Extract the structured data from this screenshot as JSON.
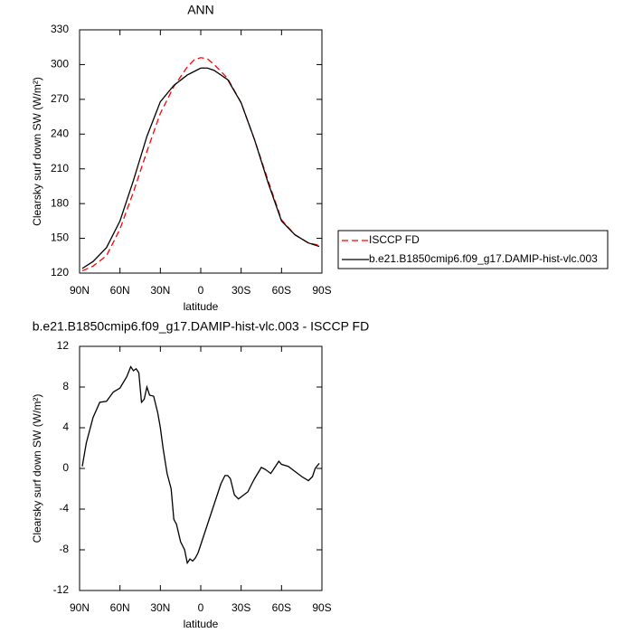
{
  "chart_data": [
    {
      "type": "line",
      "title": "ANN",
      "x_label": "latitude",
      "y_label": "Clearsky surf down SW (W/m²)",
      "x": [
        88,
        80,
        70,
        60,
        50,
        40,
        30,
        20,
        10,
        5,
        0,
        -5,
        -10,
        -20,
        -30,
        -40,
        -50,
        -60,
        -70,
        -80,
        -88
      ],
      "xlim": [
        90,
        -90
      ],
      "xticks": [
        {
          "value": 90,
          "label": "90N"
        },
        {
          "value": 60,
          "label": "60N"
        },
        {
          "value": 30,
          "label": "30N"
        },
        0,
        {
          "value": -30,
          "label": "30S"
        },
        {
          "value": -60,
          "label": "60S"
        },
        {
          "value": -90,
          "label": "90S"
        }
      ],
      "ylim": [
        120,
        330
      ],
      "yticks": [
        120,
        150,
        180,
        210,
        240,
        270,
        300,
        330
      ],
      "legend": "right",
      "series": [
        {
          "name": "ISCCP FD",
          "color": "#ff0000",
          "dashed": true,
          "values": [
            122,
            126,
            135,
            158,
            190,
            225,
            258,
            281,
            298,
            304,
            306,
            305,
            300,
            288,
            267,
            235,
            200,
            166,
            153,
            146,
            144
          ]
        },
        {
          "name": "b.e21.B1850cmip6.f09_g17.DAMIP-hist-vlc.003",
          "color": "#000000",
          "dashed": false,
          "values": [
            124,
            130,
            142,
            165,
            200,
            238,
            268,
            282,
            291,
            294,
            297,
            297,
            295,
            287,
            267,
            235,
            198,
            165,
            153,
            146,
            143
          ]
        }
      ]
    },
    {
      "type": "line",
      "title": "b.e21.B1850cmip6.f09_g17.DAMIP-hist-vlc.003 - ISCCP FD",
      "x_label": "latitude",
      "y_label": "Clearsky surf down SW (W/m²)",
      "x": [
        88,
        85,
        80,
        75,
        70,
        65,
        60,
        55,
        52,
        50,
        48,
        46,
        44,
        42,
        40,
        38,
        35,
        32,
        30,
        28,
        25,
        22,
        20,
        18,
        15,
        12,
        10,
        8,
        6,
        4,
        2,
        0,
        -5,
        -10,
        -15,
        -18,
        -20,
        -22,
        -25,
        -28,
        -30,
        -35,
        -38,
        -40,
        -45,
        -48,
        -52,
        -55,
        -58,
        -60,
        -65,
        -70,
        -75,
        -80,
        -83,
        -85,
        -88
      ],
      "xlim": [
        90,
        -90
      ],
      "xticks": [
        {
          "value": 90,
          "label": "90N"
        },
        {
          "value": 60,
          "label": "60N"
        },
        {
          "value": 30,
          "label": "30N"
        },
        0,
        {
          "value": -30,
          "label": "30S"
        },
        {
          "value": -60,
          "label": "60S"
        },
        {
          "value": -90,
          "label": "90S"
        }
      ],
      "ylim": [
        -12,
        12
      ],
      "yticks": [
        -12,
        -8,
        -4,
        0,
        4,
        8,
        12
      ],
      "series": [
        {
          "color": "#000000",
          "dashed": false,
          "values": [
            0.2,
            2.5,
            5,
            6.5,
            6.6,
            7.5,
            7.9,
            9,
            10,
            9.6,
            9.8,
            9.4,
            6.5,
            6.8,
            8,
            7.2,
            7.1,
            5.5,
            4,
            2,
            -0.5,
            -2,
            -5,
            -5.5,
            -7.2,
            -8,
            -9.3,
            -8.9,
            -9.1,
            -8.8,
            -8.3,
            -7.5,
            -5.5,
            -3.5,
            -1.5,
            -0.7,
            -0.7,
            -1,
            -2.6,
            -3,
            -2.8,
            -2.3,
            -1.5,
            -1,
            0.1,
            -0.1,
            -0.5,
            0.1,
            0.7,
            0.4,
            0.2,
            -0.3,
            -0.8,
            -1.2,
            -0.8,
            0,
            0.5
          ]
        }
      ]
    }
  ]
}
